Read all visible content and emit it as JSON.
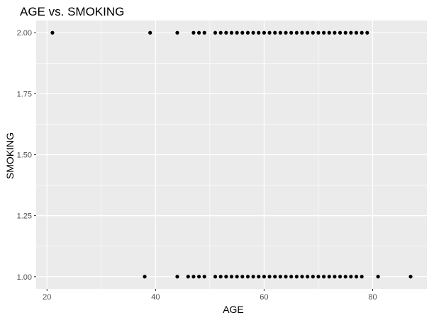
{
  "chart_data": {
    "type": "scatter",
    "title": "AGE vs. SMOKING",
    "xlabel": "AGE",
    "ylabel": "SMOKING",
    "xlim": [
      18,
      90
    ],
    "ylim": [
      0.95,
      2.05
    ],
    "x_ticks": [
      20,
      40,
      60,
      80
    ],
    "x_minor_ticks": [
      30,
      50,
      70
    ],
    "y_ticks": [
      1.0,
      1.25,
      1.5,
      1.75,
      2.0
    ],
    "y_tick_labels": [
      "1.00",
      "1.25",
      "1.50",
      "1.75",
      "2.00"
    ],
    "y_minor_ticks": [
      1.125,
      1.375,
      1.625,
      1.875
    ],
    "grid": true,
    "background": "#ebebeb",
    "grid_color": "#ffffff",
    "point_color": "#000000",
    "series": [
      {
        "x": [
          21,
          39,
          44,
          47,
          48,
          49,
          51,
          52,
          53,
          54,
          55,
          56,
          57,
          58,
          59,
          60,
          61,
          62,
          63,
          64,
          65,
          66,
          67,
          68,
          69,
          70,
          71,
          72,
          73,
          74,
          75,
          76,
          77,
          78,
          79,
          38,
          44,
          46,
          47,
          48,
          49,
          51,
          52,
          53,
          54,
          55,
          56,
          57,
          58,
          59,
          60,
          61,
          62,
          63,
          64,
          65,
          66,
          67,
          68,
          69,
          70,
          71,
          72,
          73,
          74,
          75,
          76,
          77,
          78,
          81,
          87
        ],
        "y": [
          2,
          2,
          2,
          2,
          2,
          2,
          2,
          2,
          2,
          2,
          2,
          2,
          2,
          2,
          2,
          2,
          2,
          2,
          2,
          2,
          2,
          2,
          2,
          2,
          2,
          2,
          2,
          2,
          2,
          2,
          2,
          2,
          2,
          2,
          2,
          1,
          1,
          1,
          1,
          1,
          1,
          1,
          1,
          1,
          1,
          1,
          1,
          1,
          1,
          1,
          1,
          1,
          1,
          1,
          1,
          1,
          1,
          1,
          1,
          1,
          1,
          1,
          1,
          1,
          1,
          1,
          1,
          1,
          1,
          1,
          1
        ]
      }
    ]
  }
}
